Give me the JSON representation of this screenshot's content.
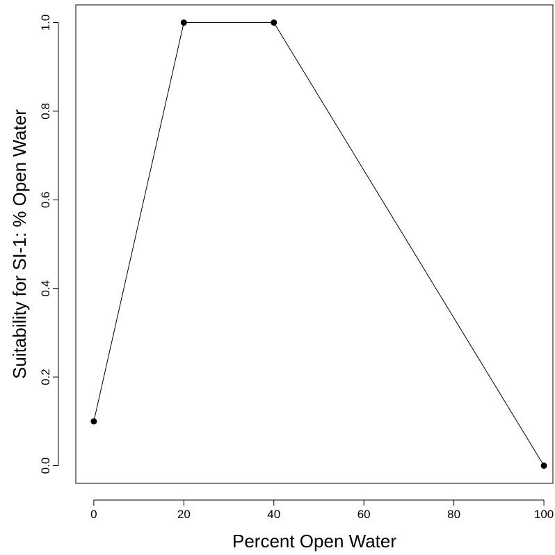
{
  "chart_data": {
    "type": "line",
    "title": "",
    "xlabel": "Percent Open Water",
    "ylabel": "Suitability for SI-1: % Open Water",
    "x": [
      0,
      20,
      40,
      100
    ],
    "y": [
      0.1,
      1.0,
      1.0,
      0.0
    ],
    "xlim": [
      -4,
      102
    ],
    "ylim": [
      -0.04,
      1.04
    ],
    "xticks": [
      0,
      20,
      40,
      60,
      80,
      100
    ],
    "xtick_labels": [
      "0",
      "20",
      "40",
      "60",
      "80",
      "100"
    ],
    "yticks": [
      0.0,
      0.2,
      0.4,
      0.6,
      0.8,
      1.0
    ],
    "ytick_labels": [
      "0.0",
      "0.2",
      "0.4",
      "0.6",
      "0.8",
      "1.0"
    ],
    "grid": false,
    "legend": false,
    "markers": "filled-circle",
    "line_color": "#000000"
  }
}
